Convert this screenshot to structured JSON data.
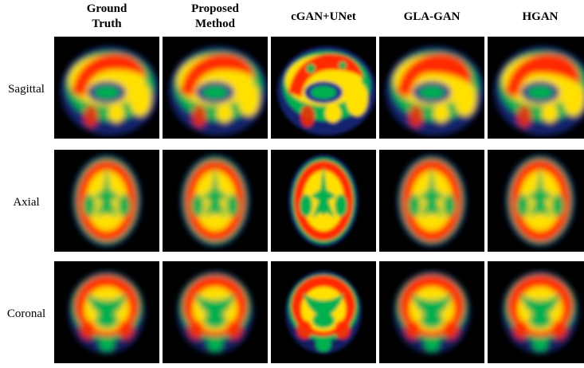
{
  "columns": [
    {
      "label": "Ground\nTruth"
    },
    {
      "label": "Proposed\nMethod"
    },
    {
      "label": "cGAN+UNet"
    },
    {
      "label": "GLA-GAN"
    },
    {
      "label": "HGAN"
    }
  ],
  "rows": [
    {
      "label": "Sagittal",
      "view": "sagittal"
    },
    {
      "label": "Axial",
      "view": "axial"
    },
    {
      "label": "Coronal",
      "view": "coronal"
    }
  ],
  "colormap": {
    "background": "#000000",
    "low": "#1a2a8a",
    "mid_low": "#00b050",
    "mid": "#ffe000",
    "high": "#ff2a00"
  }
}
